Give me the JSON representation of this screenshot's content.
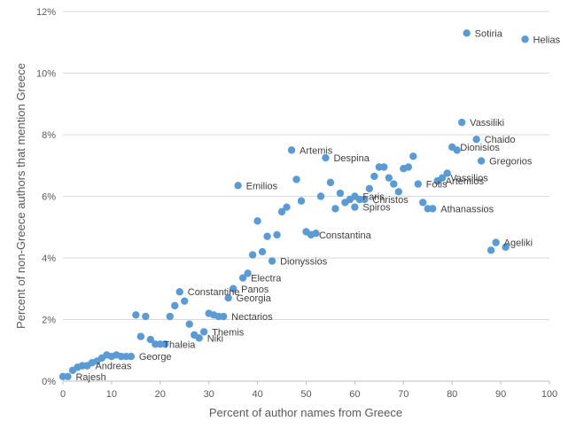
{
  "colors": {
    "point": "#5b9bd5",
    "grid": "#d9d9d9",
    "axis": "#bfbfbf",
    "tick_text": "#595959",
    "label_text": "#404040"
  },
  "chart_data": {
    "type": "scatter",
    "xlabel": "Percent of author names from Greece",
    "ylabel": "Percent of non-Greece authors that mention Greece",
    "xlim": [
      0,
      100
    ],
    "ylim": [
      0,
      12
    ],
    "x_ticks": [
      "0",
      "10",
      "20",
      "30",
      "40",
      "50",
      "60",
      "70",
      "80",
      "90",
      "100"
    ],
    "y_ticks": [
      "0%",
      "2%",
      "4%",
      "6%",
      "8%",
      "10%",
      "12%"
    ],
    "grid": {
      "x": false,
      "y": true
    },
    "legend": "none",
    "points": [
      {
        "x": 83,
        "y": 11.3,
        "label": "Sotiria"
      },
      {
        "x": 95,
        "y": 11.1,
        "label": "Helias"
      },
      {
        "x": 82,
        "y": 8.4,
        "label": "Vassiliki"
      },
      {
        "x": 85,
        "y": 7.85,
        "label": "Chaido"
      },
      {
        "x": 80,
        "y": 7.6,
        "label": "Dionisios"
      },
      {
        "x": 86,
        "y": 7.15,
        "label": "Gregorios"
      },
      {
        "x": 78,
        "y": 6.6,
        "label": "Vassilios"
      },
      {
        "x": 77,
        "y": 6.5,
        "label": "Artemios"
      },
      {
        "x": 73,
        "y": 6.4,
        "label": "Fotis"
      },
      {
        "x": 76,
        "y": 5.6,
        "label": "Athanassios"
      },
      {
        "x": 47,
        "y": 7.5,
        "label": "Artemis"
      },
      {
        "x": 54,
        "y": 7.25,
        "label": "Despina"
      },
      {
        "x": 36,
        "y": 6.35,
        "label": "Emilios"
      },
      {
        "x": 60,
        "y": 6.0,
        "label": "Faris"
      },
      {
        "x": 62,
        "y": 5.9,
        "label": "Christos"
      },
      {
        "x": 60,
        "y": 5.65,
        "label": "Spiros"
      },
      {
        "x": 51,
        "y": 4.75,
        "label": "Constantina"
      },
      {
        "x": 43,
        "y": 3.9,
        "label": "Dionyssios"
      },
      {
        "x": 89,
        "y": 4.5,
        "label": "Ageliki"
      },
      {
        "x": 37,
        "y": 3.35,
        "label": "Electra"
      },
      {
        "x": 35,
        "y": 3.0,
        "label": "Panos"
      },
      {
        "x": 24,
        "y": 2.9,
        "label": "Constantine"
      },
      {
        "x": 34,
        "y": 2.7,
        "label": "Georgia"
      },
      {
        "x": 33,
        "y": 2.1,
        "label": "Nectarios"
      },
      {
        "x": 29,
        "y": 1.6,
        "label": "Themis"
      },
      {
        "x": 28,
        "y": 1.4,
        "label": "Niki"
      },
      {
        "x": 19,
        "y": 1.2,
        "label": "Thaleia"
      },
      {
        "x": 14,
        "y": 0.8,
        "label": "George"
      },
      {
        "x": 5,
        "y": 0.5,
        "label": "Andreas"
      },
      {
        "x": 1,
        "y": 0.15,
        "label": "Rajesh"
      },
      {
        "x": 0,
        "y": 0.15
      },
      {
        "x": 2,
        "y": 0.35
      },
      {
        "x": 3,
        "y": 0.45
      },
      {
        "x": 4,
        "y": 0.5
      },
      {
        "x": 6,
        "y": 0.6
      },
      {
        "x": 7,
        "y": 0.65
      },
      {
        "x": 8,
        "y": 0.75
      },
      {
        "x": 9,
        "y": 0.85
      },
      {
        "x": 10,
        "y": 0.8
      },
      {
        "x": 11,
        "y": 0.85
      },
      {
        "x": 12,
        "y": 0.8
      },
      {
        "x": 13,
        "y": 0.8
      },
      {
        "x": 15,
        "y": 2.15
      },
      {
        "x": 16,
        "y": 1.45
      },
      {
        "x": 17,
        "y": 2.1
      },
      {
        "x": 18,
        "y": 1.35
      },
      {
        "x": 20,
        "y": 1.2
      },
      {
        "x": 21,
        "y": 1.2
      },
      {
        "x": 22,
        "y": 2.1
      },
      {
        "x": 23,
        "y": 2.45
      },
      {
        "x": 25,
        "y": 2.6
      },
      {
        "x": 26,
        "y": 1.85
      },
      {
        "x": 27,
        "y": 1.5
      },
      {
        "x": 30,
        "y": 2.2
      },
      {
        "x": 31,
        "y": 2.15
      },
      {
        "x": 32,
        "y": 2.1
      },
      {
        "x": 38,
        "y": 3.5
      },
      {
        "x": 39,
        "y": 4.1
      },
      {
        "x": 40,
        "y": 5.2
      },
      {
        "x": 41,
        "y": 4.2
      },
      {
        "x": 42,
        "y": 4.7
      },
      {
        "x": 44,
        "y": 4.75
      },
      {
        "x": 45,
        "y": 5.5
      },
      {
        "x": 46,
        "y": 5.65
      },
      {
        "x": 48,
        "y": 6.55
      },
      {
        "x": 49,
        "y": 5.85
      },
      {
        "x": 50,
        "y": 4.85
      },
      {
        "x": 52,
        "y": 4.8
      },
      {
        "x": 53,
        "y": 6.0
      },
      {
        "x": 55,
        "y": 6.45
      },
      {
        "x": 56,
        "y": 5.6
      },
      {
        "x": 57,
        "y": 6.1
      },
      {
        "x": 58,
        "y": 5.8
      },
      {
        "x": 59,
        "y": 5.9
      },
      {
        "x": 61,
        "y": 5.9
      },
      {
        "x": 63,
        "y": 6.25
      },
      {
        "x": 64,
        "y": 6.65
      },
      {
        "x": 65,
        "y": 6.95
      },
      {
        "x": 66,
        "y": 6.95
      },
      {
        "x": 67,
        "y": 6.6
      },
      {
        "x": 68,
        "y": 6.4
      },
      {
        "x": 69,
        "y": 6.15
      },
      {
        "x": 70,
        "y": 6.9
      },
      {
        "x": 71,
        "y": 6.95
      },
      {
        "x": 72,
        "y": 7.3
      },
      {
        "x": 74,
        "y": 5.8
      },
      {
        "x": 75,
        "y": 5.6
      },
      {
        "x": 79,
        "y": 6.75
      },
      {
        "x": 81,
        "y": 7.5
      },
      {
        "x": 88,
        "y": 4.25
      },
      {
        "x": 91,
        "y": 4.35
      }
    ]
  }
}
